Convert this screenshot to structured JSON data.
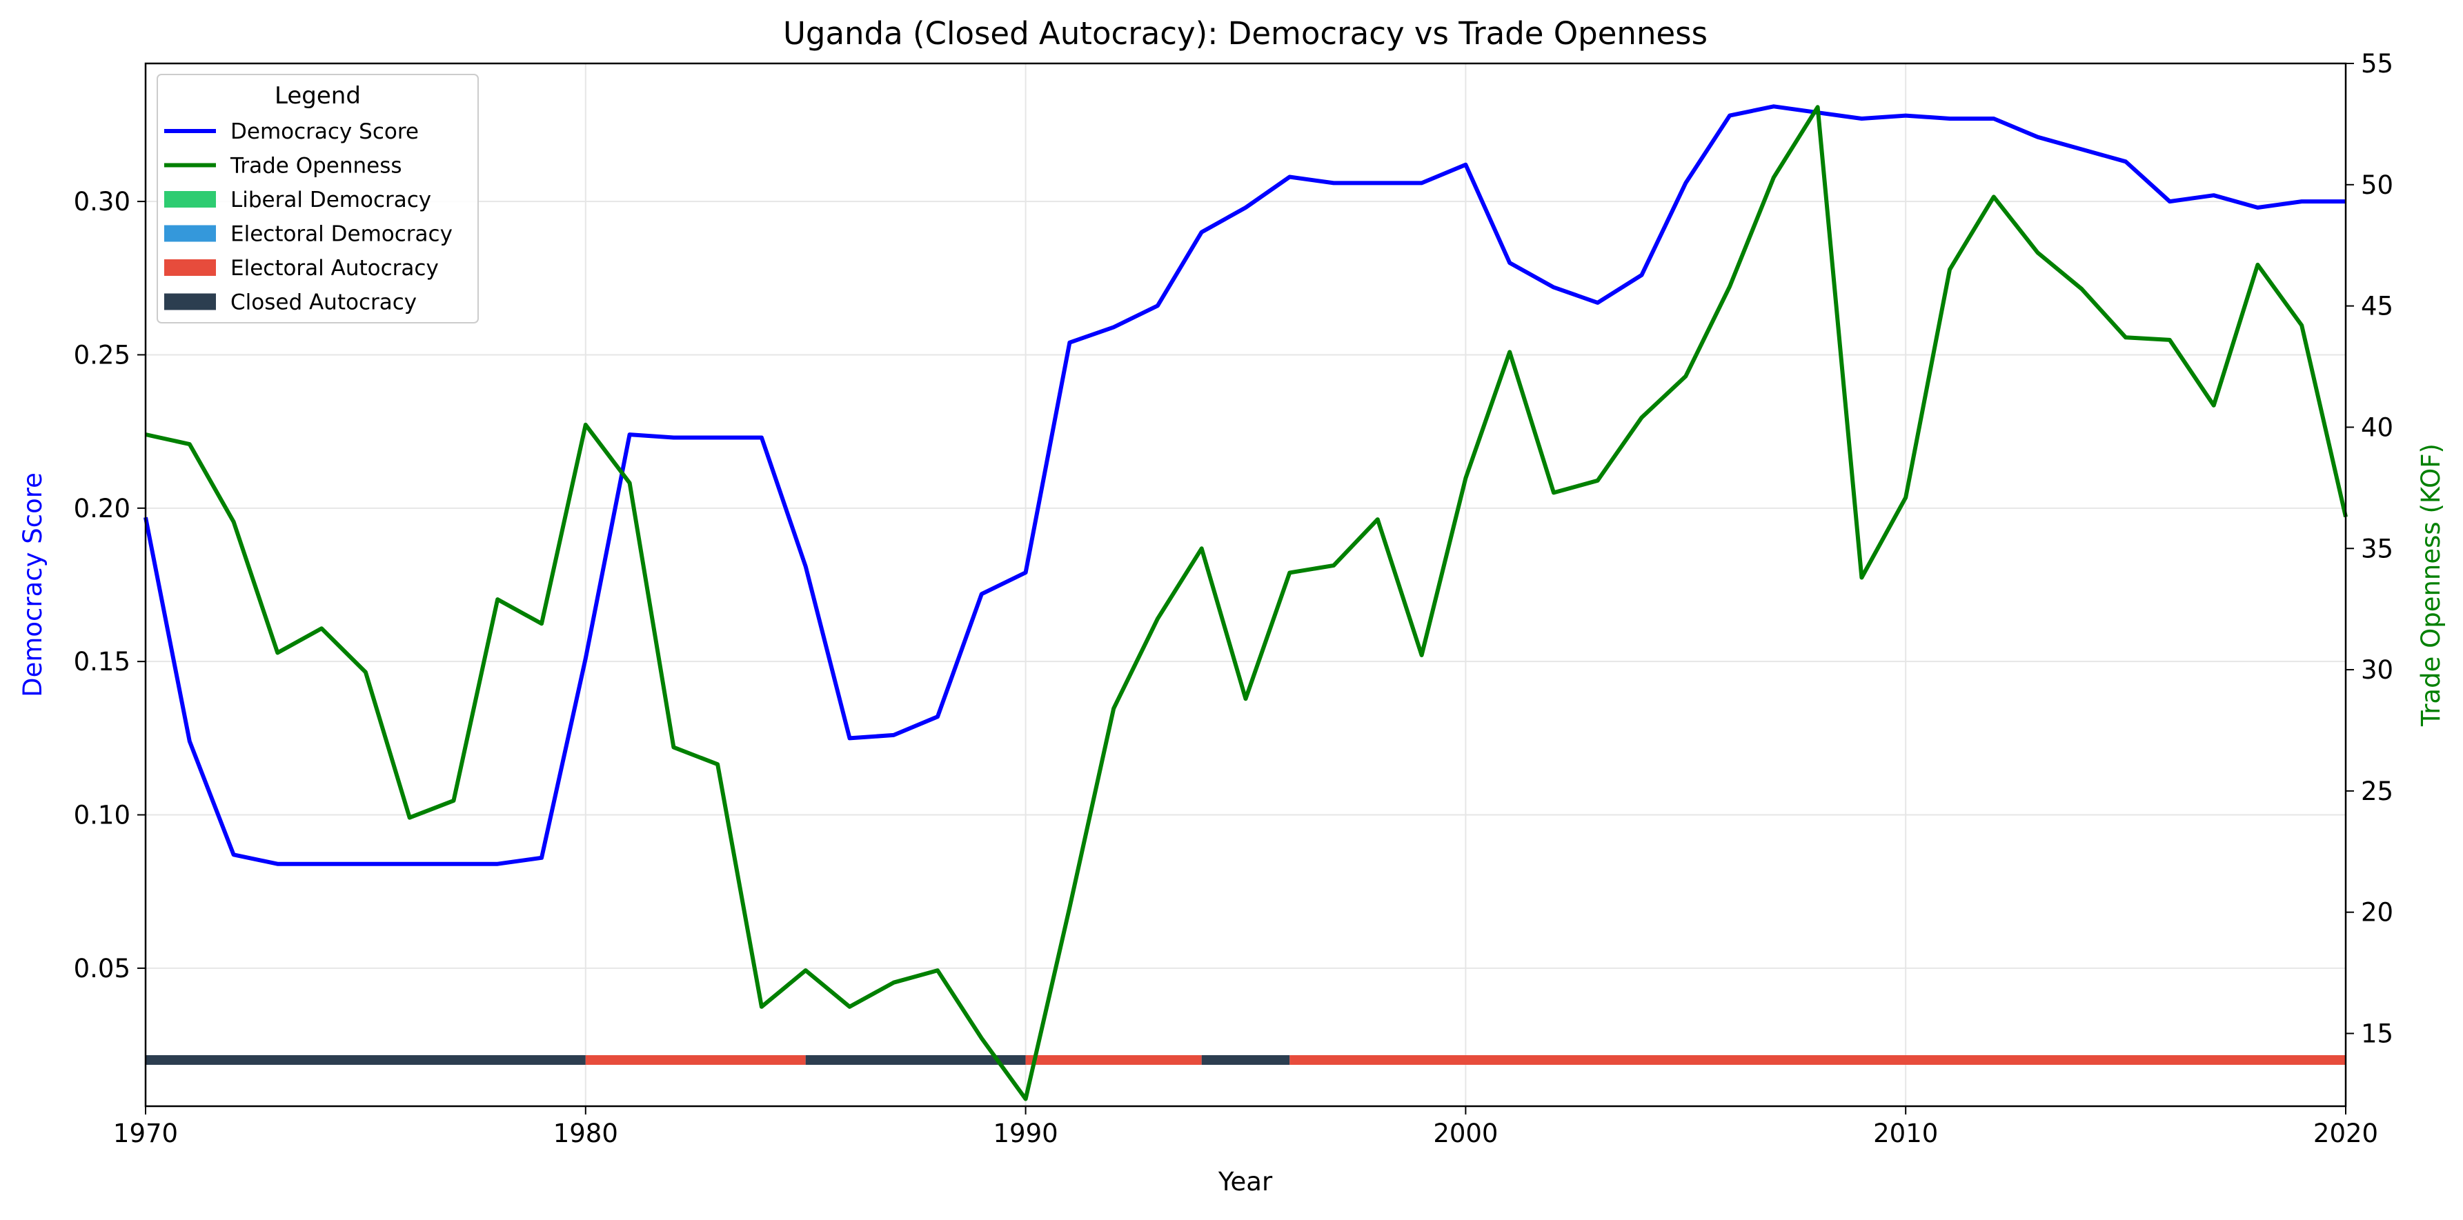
{
  "chart_data": {
    "type": "line",
    "title": "Uganda (Closed Autocracy): Democracy vs Trade Openness",
    "xlabel": "Year",
    "ylabel": "Democracy Score",
    "y2label": "Trade Openness (KOF)",
    "xlim": [
      1970,
      2020
    ],
    "ylim": [
      0.005,
      0.345
    ],
    "y2lim": [
      12.0,
      55.0
    ],
    "x_ticks": [
      1970,
      1980,
      1990,
      2000,
      2010,
      2020
    ],
    "y_ticks": [
      0.05,
      0.1,
      0.15,
      0.2,
      0.25,
      0.3
    ],
    "y2_ticks": [
      15,
      20,
      25,
      30,
      35,
      40,
      45,
      50,
      55
    ],
    "grid": true,
    "legend": {
      "title": "Legend",
      "position": "top-left",
      "entries": [
        {
          "label": "Democracy Score",
          "kind": "line",
          "color": "#0000ff"
        },
        {
          "label": "Trade Openness",
          "kind": "line",
          "color": "#008000"
        },
        {
          "label": "Liberal Democracy",
          "kind": "patch",
          "color": "#2ecc71"
        },
        {
          "label": "Electoral Democracy",
          "kind": "patch",
          "color": "#3498db"
        },
        {
          "label": "Electoral Autocracy",
          "kind": "patch",
          "color": "#e74c3c"
        },
        {
          "label": "Closed Autocracy",
          "kind": "patch",
          "color": "#2c3e50"
        }
      ]
    },
    "regime_bands": [
      {
        "start": 1970,
        "end": 1980,
        "regime": "Closed Autocracy",
        "color": "#2c3e50"
      },
      {
        "start": 1980,
        "end": 1985,
        "regime": "Electoral Autocracy",
        "color": "#e74c3c"
      },
      {
        "start": 1985,
        "end": 1990,
        "regime": "Closed Autocracy",
        "color": "#2c3e50"
      },
      {
        "start": 1990,
        "end": 1994,
        "regime": "Electoral Autocracy",
        "color": "#e74c3c"
      },
      {
        "start": 1994,
        "end": 1996,
        "regime": "Closed Autocracy",
        "color": "#2c3e50"
      },
      {
        "start": 1996,
        "end": 2020,
        "regime": "Electoral Autocracy",
        "color": "#e74c3c"
      }
    ],
    "x": [
      1970,
      1971,
      1972,
      1973,
      1974,
      1975,
      1976,
      1977,
      1978,
      1979,
      1980,
      1981,
      1982,
      1983,
      1984,
      1985,
      1986,
      1987,
      1988,
      1989,
      1990,
      1991,
      1992,
      1993,
      1994,
      1995,
      1996,
      1997,
      1998,
      1999,
      2000,
      2001,
      2002,
      2003,
      2004,
      2005,
      2006,
      2007,
      2008,
      2009,
      2010,
      2011,
      2012,
      2013,
      2014,
      2015,
      2016,
      2017,
      2018,
      2019,
      2020
    ],
    "series": [
      {
        "name": "Democracy Score",
        "axis": "left",
        "color": "#0000ff",
        "values": [
          0.197,
          0.124,
          0.087,
          0.084,
          0.084,
          0.084,
          0.084,
          0.084,
          0.084,
          0.086,
          0.151,
          0.224,
          0.223,
          0.223,
          0.223,
          0.181,
          0.125,
          0.126,
          0.132,
          0.172,
          0.179,
          0.254,
          0.259,
          0.266,
          0.29,
          0.298,
          0.308,
          0.306,
          0.306,
          0.306,
          0.312,
          0.28,
          0.272,
          0.267,
          0.276,
          0.306,
          0.328,
          0.331,
          0.329,
          0.327,
          0.328,
          0.327,
          0.327,
          0.321,
          0.317,
          0.313,
          0.3,
          0.302,
          0.298,
          0.3,
          0.3
        ]
      },
      {
        "name": "Trade Openness",
        "axis": "right",
        "color": "#008000",
        "values": [
          39.7,
          39.3,
          36.1,
          30.7,
          31.7,
          29.9,
          23.9,
          24.6,
          32.9,
          31.9,
          40.1,
          37.7,
          26.8,
          26.1,
          16.1,
          17.6,
          16.1,
          17.1,
          17.6,
          14.8,
          12.3,
          20.2,
          28.4,
          32.1,
          35.0,
          28.8,
          34.0,
          34.3,
          36.2,
          30.6,
          37.9,
          43.1,
          37.3,
          37.8,
          40.4,
          42.1,
          45.8,
          50.3,
          53.2,
          33.8,
          37.1,
          46.5,
          49.5,
          47.2,
          45.7,
          43.7,
          43.6,
          40.9,
          46.7,
          44.2,
          36.3
        ]
      }
    ]
  }
}
